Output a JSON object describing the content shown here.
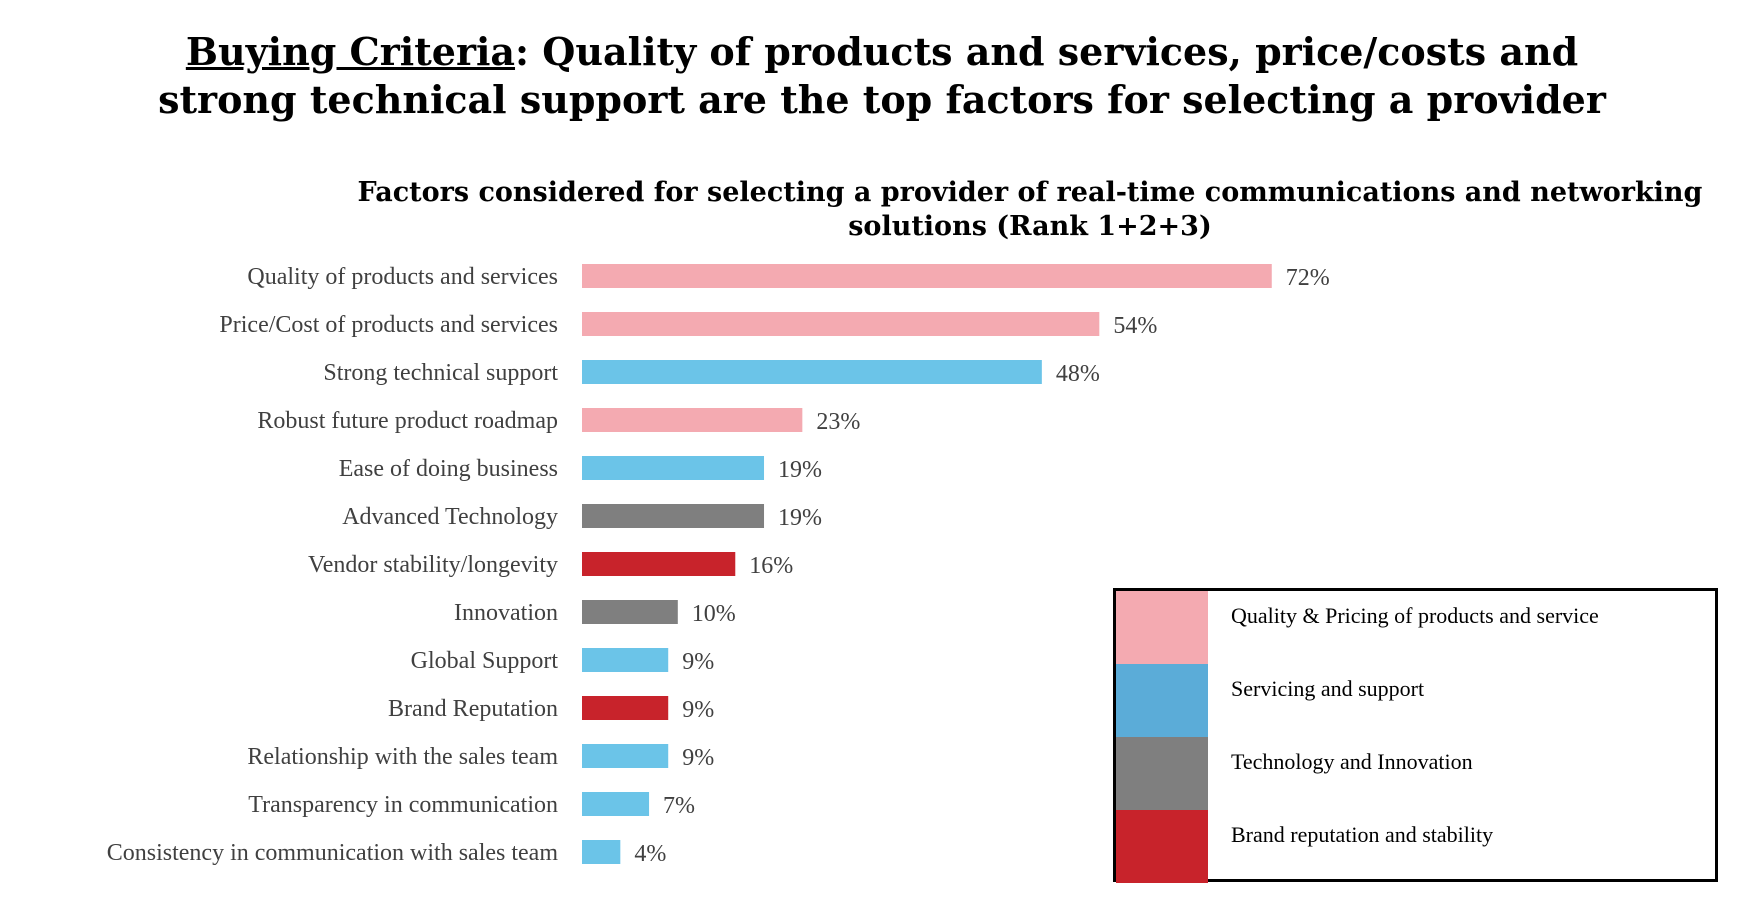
{
  "headline": {
    "lead": "Buying Criteria",
    "rest": ":  Quality of products and services, price/costs and",
    "line2": "strong technical support are the top factors for selecting a provider"
  },
  "chart_data": {
    "type": "bar",
    "orientation": "horizontal",
    "title_line1": "Factors considered for selecting a provider of real-time communications and networking",
    "title_line2": "solutions  (Rank 1+2+3)",
    "xlabel": "",
    "ylabel": "",
    "xlim": [
      0,
      100
    ],
    "grid": false,
    "categories": [
      "Quality of products and services",
      "Price/Cost of products and services",
      "Strong technical support",
      "Robust future product roadmap",
      "Ease of doing business",
      "Advanced Technology",
      "Vendor stability/longevity",
      "Innovation",
      "Global Support",
      "Brand Reputation",
      "Relationship with the sales team",
      "Transparency in communication",
      "Consistency in communication with sales team"
    ],
    "values": [
      72,
      54,
      48,
      23,
      19,
      19,
      16,
      10,
      9,
      9,
      9,
      7,
      4
    ],
    "value_labels": [
      "72%",
      "54%",
      "48%",
      "23%",
      "19%",
      "19%",
      "16%",
      "10%",
      "9%",
      "9%",
      "9%",
      "7%",
      "4%"
    ],
    "groups": [
      "quality_pricing",
      "quality_pricing",
      "servicing_support",
      "quality_pricing",
      "servicing_support",
      "technology_innovation",
      "brand_stability",
      "technology_innovation",
      "servicing_support",
      "brand_stability",
      "servicing_support",
      "servicing_support",
      "servicing_support"
    ],
    "legend_position": "bottom-right"
  },
  "colors": {
    "bars": {
      "quality_pricing": "#f4aab1",
      "servicing_support": "#6bc4e8",
      "technology_innovation": "#7f7f7f",
      "brand_stability": "#c8232b"
    },
    "legend": {
      "quality_pricing": "#f4aab1",
      "servicing_support": "#5bacd8",
      "technology_innovation": "#7f7f7f",
      "brand_stability": "#c8232b"
    }
  },
  "legend": {
    "items": [
      {
        "key": "quality_pricing",
        "label": "Quality & Pricing of products and service"
      },
      {
        "key": "servicing_support",
        "label": "Servicing and support"
      },
      {
        "key": "technology_innovation",
        "label": "Technology and Innovation"
      },
      {
        "key": "brand_stability",
        "label": "Brand reputation and stability"
      }
    ]
  }
}
